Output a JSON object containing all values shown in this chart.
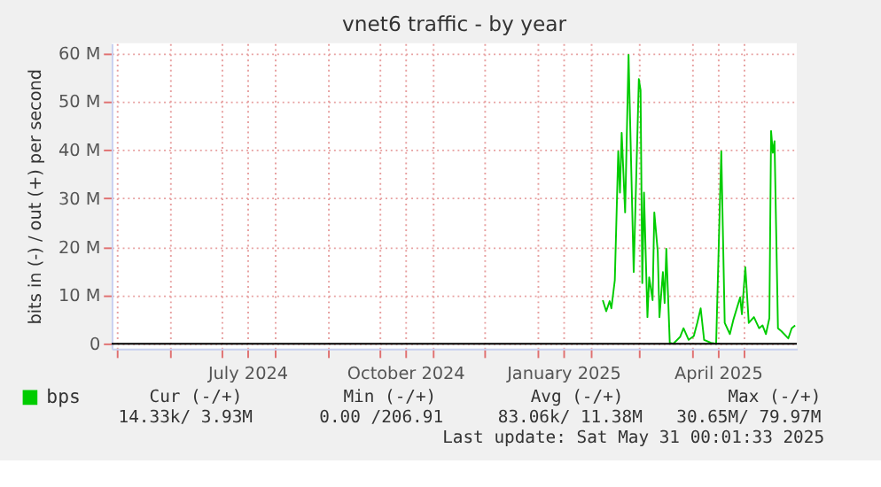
{
  "chart_data": {
    "type": "line",
    "title": "vnet6 traffic - by year",
    "ylabel": "bits in (-) / out (+) per second",
    "x": [
      "2025-02-08",
      "2025-02-10",
      "2025-02-12",
      "2025-02-13",
      "2025-02-15",
      "2025-02-17",
      "2025-02-18",
      "2025-02-19",
      "2025-02-21",
      "2025-02-23",
      "2025-02-26",
      "2025-03-01",
      "2025-03-02",
      "2025-03-03",
      "2025-03-04",
      "2025-03-06",
      "2025-03-07",
      "2025-03-09",
      "2025-03-10",
      "2025-03-12",
      "2025-03-13",
      "2025-03-15",
      "2025-03-16",
      "2025-03-17",
      "2025-03-19",
      "2025-03-21",
      "2025-03-25",
      "2025-03-27",
      "2025-03-30",
      "2025-04-02",
      "2025-04-04",
      "2025-04-06",
      "2025-04-08",
      "2025-04-12",
      "2025-04-15",
      "2025-04-18",
      "2025-04-20",
      "2025-04-23",
      "2025-04-25",
      "2025-04-29",
      "2025-04-30",
      "2025-05-02",
      "2025-05-04",
      "2025-05-07",
      "2025-05-10",
      "2025-05-12",
      "2025-05-14",
      "2025-05-16",
      "2025-05-17",
      "2025-05-18",
      "2025-05-19",
      "2025-05-21",
      "2025-05-23",
      "2025-05-27",
      "2025-05-29",
      "2025-05-31"
    ],
    "series": [
      {
        "name": "bps",
        "color": "#00cc00",
        "values": [
          9000000,
          6700000,
          8800000,
          7300000,
          13100000,
          39700000,
          31200000,
          43500000,
          27100000,
          59600000,
          14800000,
          54600000,
          52300000,
          12500000,
          31200000,
          5500000,
          13700000,
          9000000,
          27100000,
          19000000,
          5500000,
          14800000,
          8400000,
          19600000,
          200000,
          0,
          1400000,
          3200000,
          800000,
          1600000,
          4300000,
          7300000,
          800000,
          200000,
          0,
          39700000,
          4300000,
          2000000,
          4900000,
          9600000,
          6100000,
          15800000,
          4300000,
          5500000,
          3200000,
          3800000,
          2000000,
          5300000,
          43900000,
          39400000,
          41800000,
          3200000,
          2600000,
          1100000,
          3200000,
          3800000
        ]
      }
    ],
    "xlim": [
      "2024-04-28",
      "2025-06-01"
    ],
    "xticks": [
      {
        "value": "2024-05-01",
        "label": null
      },
      {
        "value": "2024-06-01",
        "label": null
      },
      {
        "value": "2024-07-01",
        "label": null
      },
      {
        "value": "2024-07-16",
        "label": "July 2024"
      },
      {
        "value": "2024-08-01",
        "label": null
      },
      {
        "value": "2024-09-01",
        "label": null
      },
      {
        "value": "2024-10-01",
        "label": null
      },
      {
        "value": "2024-10-16",
        "label": "October 2024"
      },
      {
        "value": "2024-11-01",
        "label": null
      },
      {
        "value": "2024-12-01",
        "label": null
      },
      {
        "value": "2025-01-01",
        "label": null
      },
      {
        "value": "2025-01-16",
        "label": "January 2025"
      },
      {
        "value": "2025-02-01",
        "label": null
      },
      {
        "value": "2025-03-01",
        "label": null
      },
      {
        "value": "2025-04-01",
        "label": null
      },
      {
        "value": "2025-04-16",
        "label": "April 2025"
      },
      {
        "value": "2025-05-01",
        "label": null
      }
    ],
    "ylim": [
      -1000000,
      62000000
    ],
    "yticks": [
      {
        "value": 0,
        "label": "0"
      },
      {
        "value": 10000000,
        "label": "10 M"
      },
      {
        "value": 20000000,
        "label": "20 M"
      },
      {
        "value": 30000000,
        "label": "30 M"
      },
      {
        "value": 40000000,
        "label": "40 M"
      },
      {
        "value": 50000000,
        "label": "50 M"
      },
      {
        "value": 60000000,
        "label": "60 M"
      }
    ],
    "grid": true,
    "legend": "bottom left",
    "marker": "none",
    "line_style": "solid",
    "annotations": [
      "Cur (-/+)",
      "Min (-/+)",
      "Avg (-/+)",
      "Max (-/+)",
      "14.33k/   3.93M",
      "0.00 /206.91",
      "83.06k/  11.38M",
      "30.65M/  79.97M",
      "Last update: Sat May 31 00:01:33 2025"
    ]
  }
}
